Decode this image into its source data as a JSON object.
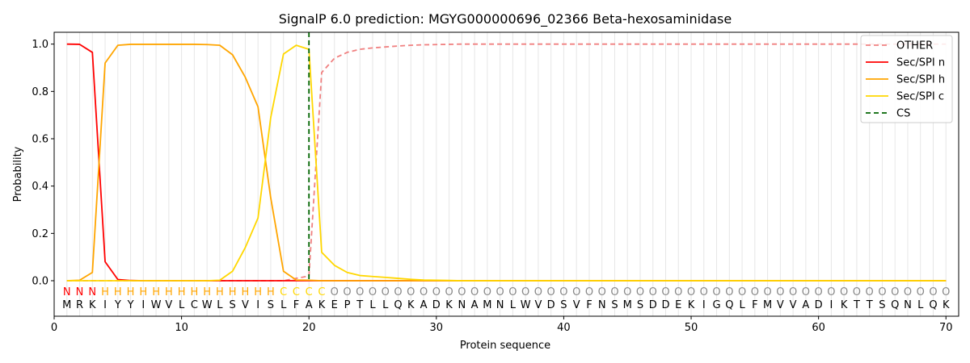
{
  "chart_data": {
    "type": "line",
    "title": "SignalP 6.0 prediction: MGYG000000696_02366 Beta-hexosaminidase",
    "xlabel": "Protein sequence",
    "ylabel": "Probability",
    "xlim": [
      0,
      71
    ],
    "ylim": [
      -0.15,
      1.05
    ],
    "xticks": [
      0,
      10,
      20,
      30,
      40,
      50,
      60,
      70
    ],
    "yticks": [
      0.0,
      0.2,
      0.4,
      0.6,
      0.8,
      1.0
    ],
    "grid": "vertical lines at each residue",
    "legend_position": "top-right",
    "sequence": "MRKIYYIWVLCWLSVISLFAKEPTLLQKADKNAMNLWVDSVFNSMSDDEKIGQLFMVVADIKTTSQNLQK",
    "labels": "NNNHHHHHHHHHHHHHHCCCCOOOOOOOOOOOOOOOOOOOOOOOOOOOOOOOOOOOOOOOOOOOOOOOOOO",
    "label_colors": {
      "N": "#ff0000",
      "H": "#ffa500",
      "C": "#ffd700",
      "O": "#888888"
    },
    "x": [
      1,
      2,
      3,
      4,
      5,
      6,
      7,
      8,
      9,
      10,
      11,
      12,
      13,
      14,
      15,
      16,
      17,
      18,
      19,
      20,
      21,
      22,
      23,
      24,
      25,
      26,
      27,
      28,
      29,
      30,
      31,
      32,
      33,
      34,
      35,
      36,
      37,
      38,
      39,
      40,
      41,
      42,
      43,
      44,
      45,
      46,
      47,
      48,
      49,
      50,
      51,
      52,
      53,
      54,
      55,
      56,
      57,
      58,
      59,
      60,
      61,
      62,
      63,
      64,
      65,
      66,
      67,
      68,
      69,
      70
    ],
    "series": [
      {
        "name": "OTHER",
        "color": "#f08080",
        "dash": true,
        "values": [
          0,
          0,
          0,
          0,
          0,
          0,
          0,
          0,
          0,
          0,
          0,
          0,
          0,
          0,
          0,
          0,
          0,
          0,
          0.01,
          0.02,
          0.88,
          0.94,
          0.965,
          0.978,
          0.984,
          0.988,
          0.992,
          0.995,
          0.997,
          0.998,
          0.999,
          1,
          1,
          1,
          1,
          1,
          1,
          1,
          1,
          1,
          1,
          1,
          1,
          1,
          1,
          1,
          1,
          1,
          1,
          1,
          1,
          1,
          1,
          1,
          1,
          1,
          1,
          1,
          1,
          1,
          1,
          1,
          1,
          1,
          1,
          1,
          1,
          1,
          1,
          1
        ]
      },
      {
        "name": "Sec/SPI n",
        "color": "#ff0000",
        "dash": false,
        "values": [
          1.0,
          0.999,
          0.965,
          0.08,
          0.005,
          0.001,
          0,
          0,
          0,
          0,
          0,
          0,
          0,
          0,
          0,
          0,
          0,
          0,
          0,
          0,
          0,
          0,
          0,
          0,
          0,
          0,
          0,
          0,
          0,
          0,
          0,
          0,
          0,
          0,
          0,
          0,
          0,
          0,
          0,
          0,
          0,
          0,
          0,
          0,
          0,
          0,
          0,
          0,
          0,
          0,
          0,
          0,
          0,
          0,
          0,
          0,
          0,
          0,
          0,
          0,
          0,
          0,
          0,
          0,
          0,
          0,
          0,
          0,
          0,
          0
        ]
      },
      {
        "name": "Sec/SPI h",
        "color": "#ffa500",
        "dash": false,
        "values": [
          0,
          0.002,
          0.035,
          0.92,
          0.995,
          0.999,
          0.999,
          0.999,
          0.999,
          0.999,
          0.999,
          0.998,
          0.995,
          0.955,
          0.86,
          0.735,
          0.35,
          0.04,
          0.003,
          0.002,
          0,
          0,
          0,
          0,
          0,
          0,
          0,
          0,
          0,
          0,
          0,
          0,
          0,
          0,
          0,
          0,
          0,
          0,
          0,
          0,
          0,
          0,
          0,
          0,
          0,
          0,
          0,
          0,
          0,
          0,
          0,
          0,
          0,
          0,
          0,
          0,
          0,
          0,
          0,
          0,
          0,
          0,
          0,
          0,
          0,
          0,
          0,
          0,
          0,
          0
        ]
      },
      {
        "name": "Sec/SPI c",
        "color": "#ffd700",
        "dash": false,
        "values": [
          0,
          0,
          0,
          0,
          0,
          0,
          0,
          0,
          0,
          0,
          0,
          0,
          0.002,
          0.04,
          0.14,
          0.265,
          0.69,
          0.958,
          0.995,
          0.978,
          0.12,
          0.065,
          0.035,
          0.022,
          0.018,
          0.014,
          0.01,
          0.006,
          0.003,
          0.002,
          0.001,
          0,
          0,
          0,
          0,
          0,
          0,
          0,
          0,
          0,
          0,
          0,
          0,
          0,
          0,
          0,
          0,
          0,
          0,
          0,
          0,
          0,
          0,
          0,
          0,
          0,
          0,
          0,
          0,
          0,
          0,
          0,
          0,
          0,
          0,
          0,
          0,
          0,
          0,
          0
        ]
      },
      {
        "name": "CS",
        "color": "#006400",
        "dash": true,
        "vertical_at": 20
      }
    ]
  }
}
